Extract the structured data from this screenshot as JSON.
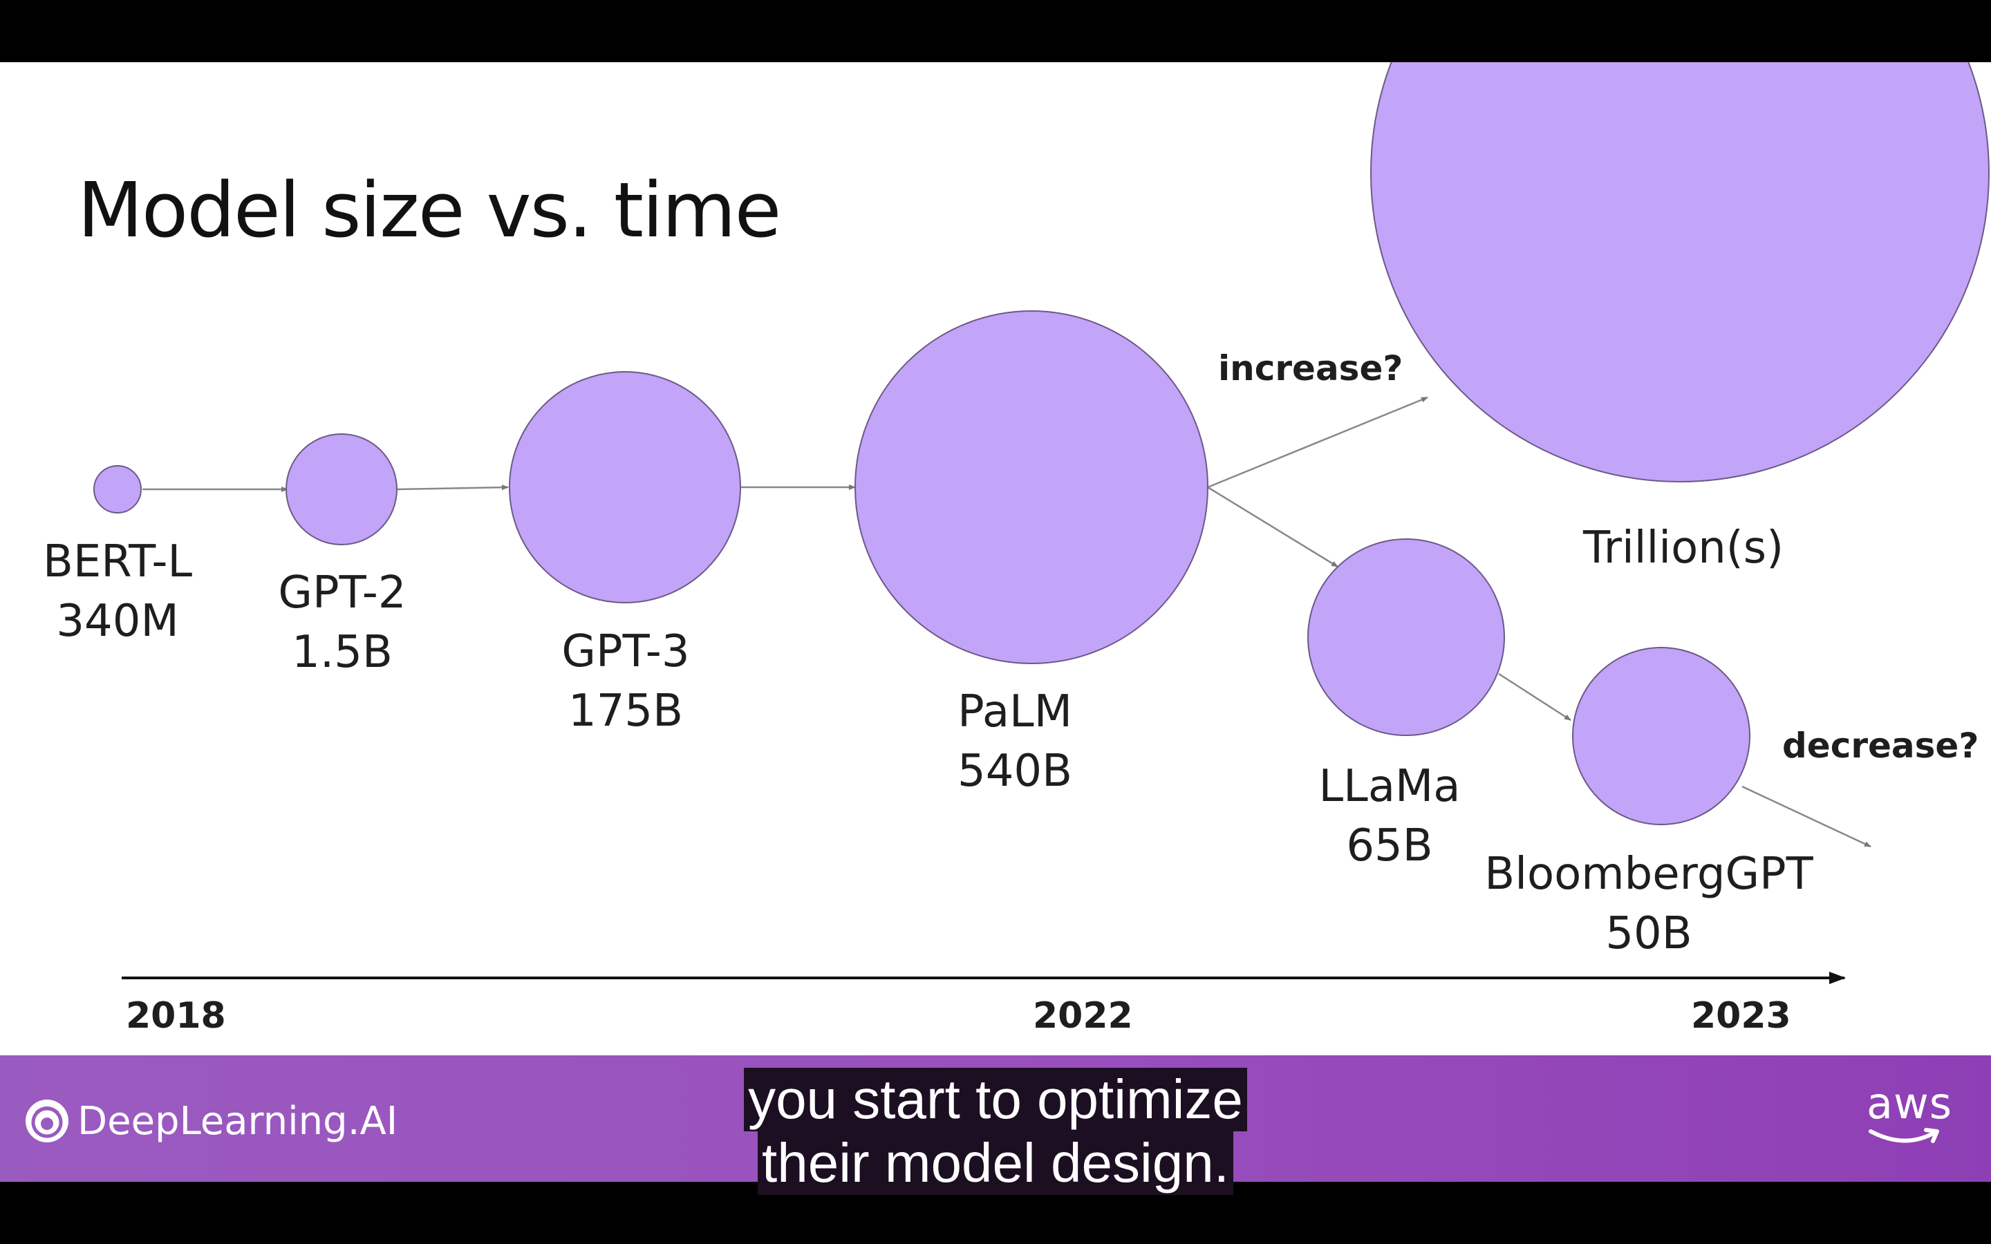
{
  "slide": {
    "title": "Model size vs. time"
  },
  "models": [
    {
      "name": "BERT-L",
      "size": "340M"
    },
    {
      "name": "GPT-2",
      "size": "1.5B"
    },
    {
      "name": "GPT-3",
      "size": "175B"
    },
    {
      "name": "PaLM",
      "size": "540B"
    },
    {
      "name": "LLaMa",
      "size": "65B"
    },
    {
      "name": "BloombergGPT",
      "size": "50B"
    }
  ],
  "future": {
    "label": "Trillion(s)"
  },
  "annotations": {
    "increase": "increase?",
    "decrease": "decrease?"
  },
  "timeline": {
    "years": [
      "2018",
      "2022",
      "2023"
    ]
  },
  "footer": {
    "brand": "DeepLearning.AI",
    "partner": "aws"
  },
  "captions": [
    "you start to optimize",
    "their model design."
  ],
  "colors": {
    "bubble": "#c2a4f8",
    "footer": "#9a50bd"
  }
}
